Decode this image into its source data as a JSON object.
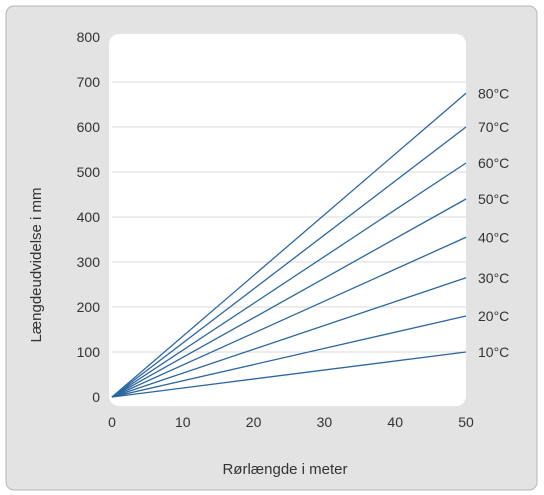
{
  "chart_data": {
    "type": "line",
    "title": "",
    "xlabel": "Rørlængde i meter",
    "ylabel": "Længdeudvidelse i mm",
    "xlim": [
      0,
      50
    ],
    "ylim": [
      0,
      800
    ],
    "x_ticks": [
      "0",
      "10",
      "20",
      "30",
      "40",
      "50"
    ],
    "y_ticks": [
      "0",
      "100",
      "200",
      "300",
      "400",
      "500",
      "600",
      "700",
      "800"
    ],
    "x_tick_values": [
      0,
      10,
      20,
      30,
      40,
      50
    ],
    "y_tick_values": [
      0,
      100,
      200,
      300,
      400,
      500,
      600,
      700,
      800
    ],
    "grid": "horizontal",
    "legend": "right, labels at line ends",
    "series": [
      {
        "name": "10°C",
        "x": [
          0,
          50
        ],
        "values": [
          0,
          100
        ]
      },
      {
        "name": "20°C",
        "x": [
          0,
          50
        ],
        "values": [
          0,
          180
        ]
      },
      {
        "name": "30°C",
        "x": [
          0,
          50
        ],
        "values": [
          0,
          265
        ]
      },
      {
        "name": "40°C",
        "x": [
          0,
          50
        ],
        "values": [
          0,
          355
        ]
      },
      {
        "name": "50°C",
        "x": [
          0,
          50
        ],
        "values": [
          0,
          440
        ]
      },
      {
        "name": "60°C",
        "x": [
          0,
          50
        ],
        "values": [
          0,
          520
        ]
      },
      {
        "name": "70°C",
        "x": [
          0,
          50
        ],
        "values": [
          0,
          600
        ]
      },
      {
        "name": "80°C",
        "x": [
          0,
          50
        ],
        "values": [
          0,
          675
        ]
      }
    ],
    "colors": {
      "frame_bg": "#e3e3e4",
      "plot_bg": "#ffffff",
      "line": "#2c66a0",
      "grid": "#d9d9d9",
      "text": "#333333"
    }
  }
}
